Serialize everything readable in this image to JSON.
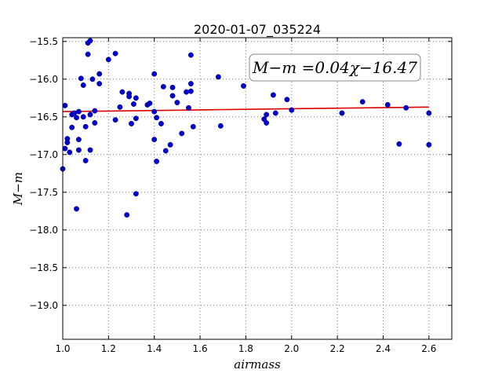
{
  "chart_data": {
    "type": "scatter",
    "title": "2020-01-07_035224",
    "xlabel": "airmass",
    "ylabel": "M−m",
    "xlim": [
      1.0,
      2.7
    ],
    "ylim": [
      -19.45,
      -15.45
    ],
    "grid": true,
    "x_ticks": [
      1.0,
      1.2,
      1.4,
      1.6,
      1.8,
      2.0,
      2.2,
      2.4,
      2.6
    ],
    "x_tick_labels": [
      "1.0",
      "1.2",
      "1.4",
      "1.6",
      "1.8",
      "2.0",
      "2.2",
      "2.4",
      "2.6"
    ],
    "y_ticks": [
      -15.5,
      -16.0,
      -16.5,
      -17.0,
      -17.5,
      -18.0,
      -18.5,
      -19.0
    ],
    "y_tick_labels": [
      "−15.5",
      "−16.0",
      "−16.5",
      "−17.0",
      "−17.5",
      "−18.0",
      "−18.5",
      "−19.0"
    ],
    "annotation": "M−m =0.04χ−16.47",
    "colors": {
      "points": "#0000cc",
      "fit_line": "#dd0000",
      "grid": "#808080"
    },
    "series": [
      {
        "kind": "points",
        "x": [
          1.0,
          1.01,
          1.01,
          1.02,
          1.02,
          1.03,
          1.04,
          1.04,
          1.05,
          1.06,
          1.06,
          1.07,
          1.07,
          1.07,
          1.08,
          1.09,
          1.09,
          1.1,
          1.1,
          1.11,
          1.11,
          1.12,
          1.12,
          1.12,
          1.13,
          1.14,
          1.14,
          1.16,
          1.16,
          1.2,
          1.23,
          1.23,
          1.25,
          1.26,
          1.28,
          1.29,
          1.29,
          1.3,
          1.31,
          1.32,
          1.32,
          1.32,
          1.37,
          1.38,
          1.4,
          1.4,
          1.4,
          1.41,
          1.41,
          1.43,
          1.44,
          1.45,
          1.47,
          1.48,
          1.48,
          1.5,
          1.52,
          1.54,
          1.55,
          1.56,
          1.56,
          1.56,
          1.57,
          1.68,
          1.69,
          1.79,
          1.88,
          1.89,
          1.89,
          1.92,
          1.93,
          1.98,
          2.0,
          2.22,
          2.31,
          2.42,
          2.47,
          2.5,
          2.6,
          2.6
        ],
        "y": [
          -17.19,
          -16.35,
          -16.92,
          -16.84,
          -16.79,
          -16.97,
          -16.47,
          -16.64,
          -16.45,
          -17.72,
          -16.51,
          -16.8,
          -16.94,
          -16.43,
          -15.99,
          -16.08,
          -16.5,
          -17.08,
          -16.63,
          -15.52,
          -15.67,
          -15.49,
          -16.47,
          -16.94,
          -16.0,
          -16.58,
          -16.42,
          -15.93,
          -16.06,
          -15.74,
          -15.66,
          -16.54,
          -16.37,
          -16.17,
          -17.8,
          -16.19,
          -16.23,
          -16.59,
          -16.33,
          -16.25,
          -17.52,
          -16.52,
          -16.34,
          -16.32,
          -15.93,
          -16.8,
          -16.43,
          -17.09,
          -16.51,
          -16.59,
          -16.1,
          -16.95,
          -16.87,
          -16.11,
          -16.22,
          -16.31,
          -16.72,
          -16.17,
          -16.38,
          -16.16,
          -15.68,
          -16.06,
          -16.63,
          -15.97,
          -16.62,
          -16.09,
          -16.53,
          -16.47,
          -16.58,
          -16.21,
          -16.45,
          -16.27,
          -16.41,
          -16.45,
          -16.3,
          -16.34,
          -16.86,
          -16.38,
          -16.87,
          -16.45
        ]
      },
      {
        "kind": "fit_line",
        "x": [
          1.0,
          2.6
        ],
        "y": [
          -16.43,
          -16.37
        ]
      }
    ]
  }
}
